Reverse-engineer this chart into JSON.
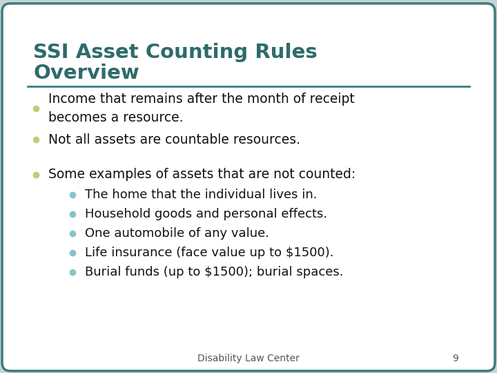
{
  "title_line1": "SSI Asset Counting Rules",
  "title_line2": "Overview",
  "title_color": "#2e6b6b",
  "background_color": "#ffffff",
  "outer_bg_color": "#c8d4d4",
  "border_color": "#3d7a7a",
  "line_color": "#3d7a7a",
  "bullet_color_main": "#c8c87a",
  "bullet_color_sub": "#88c4c4",
  "text_color": "#111111",
  "footer_text": "Disability Law Center",
  "footer_page": "9",
  "bullet_items": [
    {
      "text": "Income that remains after the month of receipt\nbecomes a resource.",
      "level": 0
    },
    {
      "text": "Not all assets are countable resources.",
      "level": 0
    },
    {
      "text": "Some examples of assets that are not counted:",
      "level": 0
    },
    {
      "text": "The home that the individual lives in.",
      "level": 1
    },
    {
      "text": "Household goods and personal effects.",
      "level": 1
    },
    {
      "text": "One automobile of any value.",
      "level": 1
    },
    {
      "text": "Life insurance (face value up to $1500).",
      "level": 1
    },
    {
      "text": "Burial funds (up to $1500); burial spaces.",
      "level": 1
    }
  ]
}
